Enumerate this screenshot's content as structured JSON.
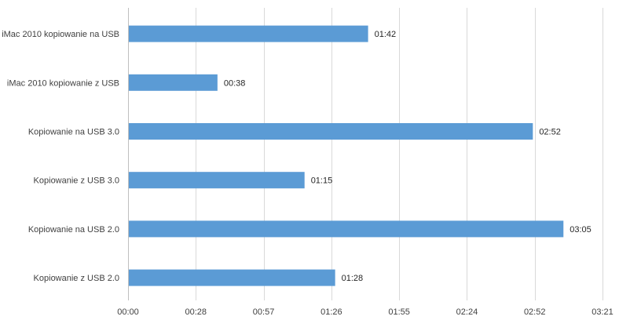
{
  "chart_data": {
    "type": "bar",
    "orientation": "horizontal",
    "title": "",
    "xlabel": "",
    "ylabel": "",
    "categories": [
      "iMac 2010 kopiowanie na USB",
      "iMac 2010 kopiowanie z USB",
      "Kopiowanie na USB 3.0",
      "Kopiowanie z USB 3.0",
      "Kopiowanie na USB 2.0",
      "Kopiowanie z USB 2.0"
    ],
    "values_seconds": [
      102,
      38,
      172,
      75,
      185,
      88
    ],
    "data_labels": [
      "01:42",
      "00:38",
      "02:52",
      "01:15",
      "03:05",
      "01:28"
    ],
    "xlim_seconds": [
      0,
      201.6
    ],
    "x_ticks_seconds": [
      0,
      28.8,
      57.6,
      86.4,
      115.2,
      144,
      172.8,
      201.6
    ],
    "x_tick_labels": [
      "00:00",
      "00:28",
      "00:57",
      "01:26",
      "01:55",
      "02:24",
      "02:52",
      "03:21"
    ],
    "grid": "vertical",
    "bar_color": "#5b9bd5",
    "grid_color": "#d9d9d9",
    "axis_color": "#bfbfbf",
    "legend": "none"
  }
}
